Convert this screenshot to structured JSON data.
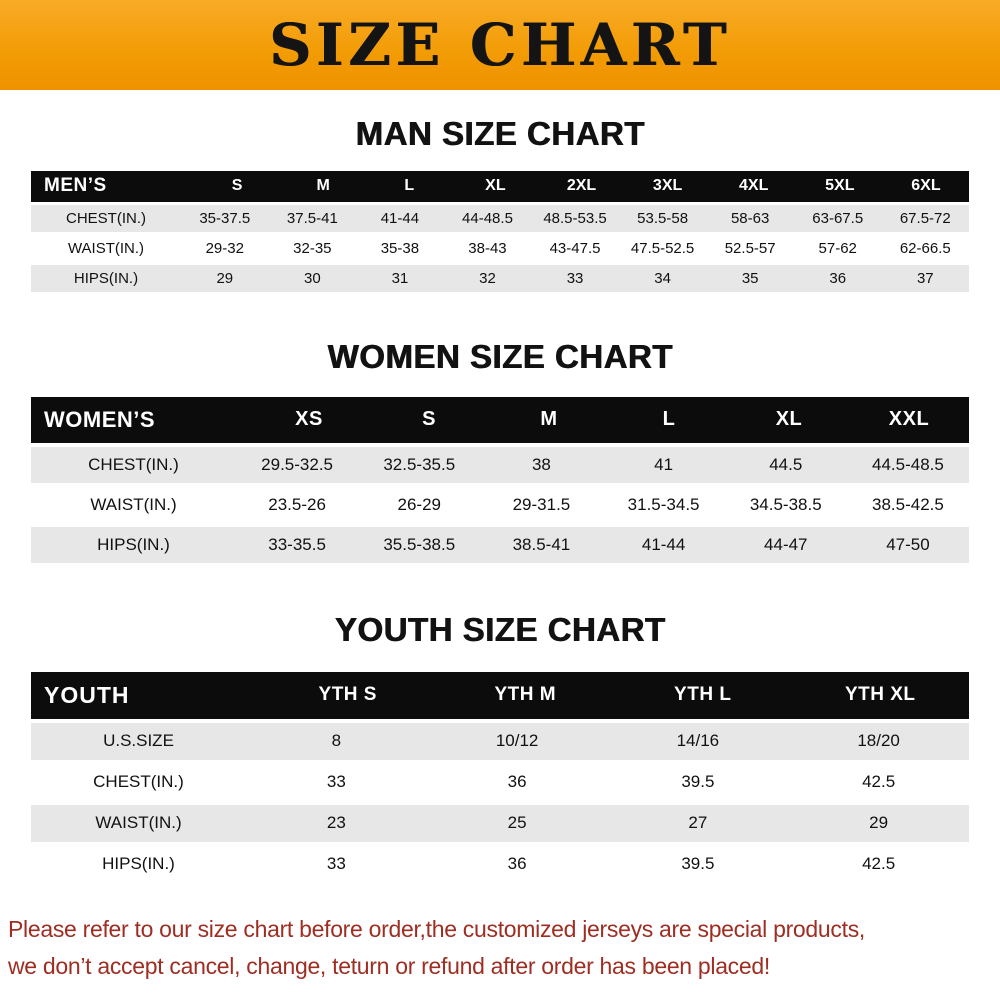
{
  "banner": {
    "title": "SIZE CHART"
  },
  "sections": [
    {
      "heading": "MAN SIZE CHART",
      "table": {
        "header_label": "MEN’S",
        "columns": [
          "S",
          "M",
          "L",
          "XL",
          "2XL",
          "3XL",
          "4XL",
          "5XL",
          "6XL"
        ],
        "rows": [
          {
            "label": "CHEST(IN.)",
            "values": [
              "35-37.5",
              "37.5-41",
              "41-44",
              "44-48.5",
              "48.5-53.5",
              "53.5-58",
              "58-63",
              "63-67.5",
              "67.5-72"
            ]
          },
          {
            "label": "WAIST(IN.)",
            "values": [
              "29-32",
              "32-35",
              "35-38",
              "38-43",
              "43-47.5",
              "47.5-52.5",
              "52.5-57",
              "57-62",
              "62-66.5"
            ]
          },
          {
            "label": "HIPS(IN.)",
            "values": [
              "29",
              "30",
              "31",
              "32",
              "33",
              "34",
              "35",
              "36",
              "37"
            ]
          }
        ]
      }
    },
    {
      "heading": "WOMEN SIZE CHART",
      "table": {
        "header_label": "WOMEN’S",
        "columns": [
          "XS",
          "S",
          "M",
          "L",
          "XL",
          "XXL"
        ],
        "rows": [
          {
            "label": "CHEST(IN.)",
            "values": [
              "29.5-32.5",
              "32.5-35.5",
              "38",
              "41",
              "44.5",
              "44.5-48.5"
            ]
          },
          {
            "label": "WAIST(IN.)",
            "values": [
              "23.5-26",
              "26-29",
              "29-31.5",
              "31.5-34.5",
              "34.5-38.5",
              "38.5-42.5"
            ]
          },
          {
            "label": "HIPS(IN.)",
            "values": [
              "33-35.5",
              "35.5-38.5",
              "38.5-41",
              "41-44",
              "44-47",
              "47-50"
            ]
          }
        ]
      }
    },
    {
      "heading": "YOUTH SIZE CHART",
      "table": {
        "header_label": "YOUTH",
        "columns": [
          "YTH S",
          "YTH M",
          "YTH L",
          "YTH XL"
        ],
        "rows": [
          {
            "label": "U.S.SIZE",
            "values": [
              "8",
              "10/12",
              "14/16",
              "18/20"
            ]
          },
          {
            "label": "CHEST(IN.)",
            "values": [
              "33",
              "36",
              "39.5",
              "42.5"
            ]
          },
          {
            "label": "WAIST(IN.)",
            "values": [
              "23",
              "25",
              "27",
              "29"
            ]
          },
          {
            "label": "HIPS(IN.)",
            "values": [
              "33",
              "36",
              "39.5",
              "42.5"
            ]
          }
        ]
      }
    }
  ],
  "footer": {
    "line1": "Please refer to our size chart before order,the customized jerseys are special products,",
    "line2": "we don’t accept cancel, change, teturn or refund after order has been placed!"
  },
  "colors": {
    "banner_orange": "#f29b04",
    "table_header_black": "#0c0c0c",
    "row_shade_gray": "#e7e7e7",
    "footer_red": "#9e2d22"
  }
}
